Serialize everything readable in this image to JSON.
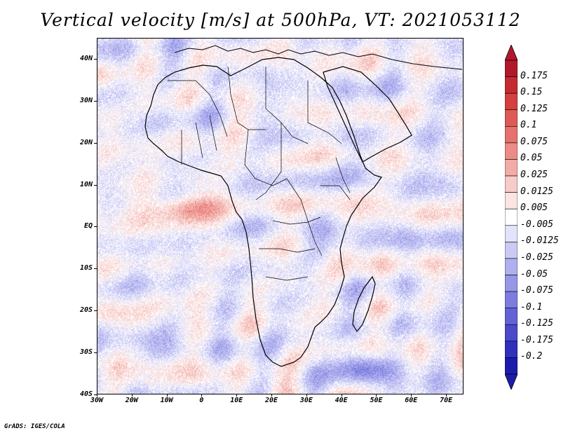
{
  "title": "Vertical velocity [m/s] at 500hPa, VT: 2021053112",
  "credit": "GrADS: IGES/COLA",
  "map": {
    "lon_range": [
      -30,
      75
    ],
    "lat_range": [
      -40,
      45
    ],
    "lat_labels": [
      "40N",
      "30N",
      "20N",
      "10N",
      "EQ",
      "10S",
      "20S",
      "30S",
      "40S"
    ],
    "lat_values": [
      40,
      30,
      20,
      10,
      0,
      -10,
      -20,
      -30,
      -40
    ],
    "lon_labels": [
      "30W",
      "20W",
      "10W",
      "0",
      "10E",
      "20E",
      "30E",
      "40E",
      "50E",
      "60E",
      "70E"
    ],
    "lon_values": [
      -30,
      -20,
      -10,
      0,
      10,
      20,
      30,
      40,
      50,
      60,
      70
    ],
    "variable": "vertical velocity",
    "units": "m/s",
    "level": "500hPa"
  },
  "colorbar": {
    "labels": [
      "0.175",
      "0.15",
      "0.125",
      "0.1",
      "0.075",
      "0.05",
      "0.025",
      "0.0125",
      "0.005",
      "-0.005",
      "-0.0125",
      "-0.025",
      "-0.05",
      "-0.075",
      "-0.1",
      "-0.125",
      "-0.175",
      "-0.2"
    ],
    "colors": [
      "#b2182b",
      "#c62a31",
      "#d43f3f",
      "#de5a55",
      "#e5726c",
      "#ec8c86",
      "#f2aba6",
      "#f7cbc8",
      "#fbe4e2",
      "#ffffff",
      "#e3e3fb",
      "#cacaf5",
      "#b0b0ef",
      "#9797e8",
      "#7d7de0",
      "#6363d6",
      "#4a4acb",
      "#3030bd",
      "#1c1cab"
    ],
    "max_color": "#b2182b",
    "min_color": "#1c1cab"
  }
}
